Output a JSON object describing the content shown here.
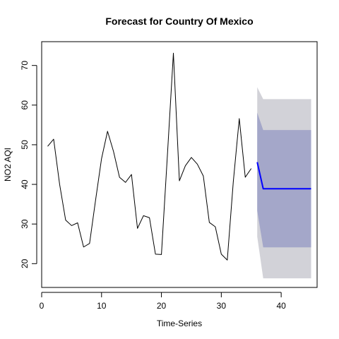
{
  "chart_data": {
    "type": "line",
    "title": "Forecast for Country Of Mexico",
    "xlabel": "Time-Series",
    "ylabel": "NO2 AQI",
    "xlim": [
      0,
      46
    ],
    "ylim": [
      14,
      76
    ],
    "xticks": [
      0,
      10,
      20,
      30,
      40
    ],
    "yticks": [
      20,
      30,
      40,
      50,
      60,
      70
    ],
    "grid": false,
    "legend": "none",
    "series": [
      {
        "role": "history",
        "color": "#000000",
        "x": [
          1,
          2,
          3,
          4,
          5,
          6,
          7,
          8,
          9,
          10,
          11,
          12,
          13,
          14,
          15,
          16,
          17,
          18,
          19,
          20,
          21,
          22,
          23,
          24,
          25,
          26,
          27,
          28,
          29,
          30,
          31,
          32,
          33,
          34,
          35
        ],
        "y": [
          49.6,
          51.4,
          40.0,
          31.0,
          29.6,
          30.3,
          24.2,
          25.1,
          36.0,
          46.5,
          53.4,
          48.3,
          41.8,
          40.5,
          42.5,
          28.9,
          32.1,
          31.6,
          22.4,
          22.3,
          47.4,
          73.1,
          40.9,
          44.7,
          46.8,
          45.1,
          42.1,
          30.4,
          29.3,
          22.4,
          20.9,
          40.6,
          56.6,
          41.8,
          44.0
        ]
      },
      {
        "role": "forecast-mean",
        "color": "#0000ff",
        "x": [
          36,
          37,
          38,
          39,
          40,
          41,
          42,
          43,
          44,
          45
        ],
        "y": [
          45.6,
          38.9,
          38.9,
          38.9,
          38.9,
          38.9,
          38.9,
          38.9,
          38.9,
          38.9
        ]
      }
    ],
    "bands": [
      {
        "role": "95% interval",
        "color": "#d2d2d8",
        "x": [
          36,
          37,
          38,
          39,
          40,
          41,
          42,
          43,
          44,
          45
        ],
        "upper": [
          64.5,
          61.5,
          61.5,
          61.5,
          61.5,
          61.5,
          61.5,
          61.5,
          61.5,
          61.5
        ],
        "lower": [
          26.8,
          16.3,
          16.3,
          16.3,
          16.3,
          16.3,
          16.3,
          16.3,
          16.3,
          16.3
        ]
      },
      {
        "role": "80% interval",
        "color": "#a4a7c9",
        "x": [
          36,
          37,
          38,
          39,
          40,
          41,
          42,
          43,
          44,
          45
        ],
        "upper": [
          58.1,
          53.7,
          53.7,
          53.7,
          53.7,
          53.7,
          53.7,
          53.7,
          53.7,
          53.7
        ],
        "lower": [
          33.3,
          24.1,
          24.1,
          24.1,
          24.1,
          24.1,
          24.1,
          24.1,
          24.1,
          24.1
        ]
      }
    ]
  }
}
